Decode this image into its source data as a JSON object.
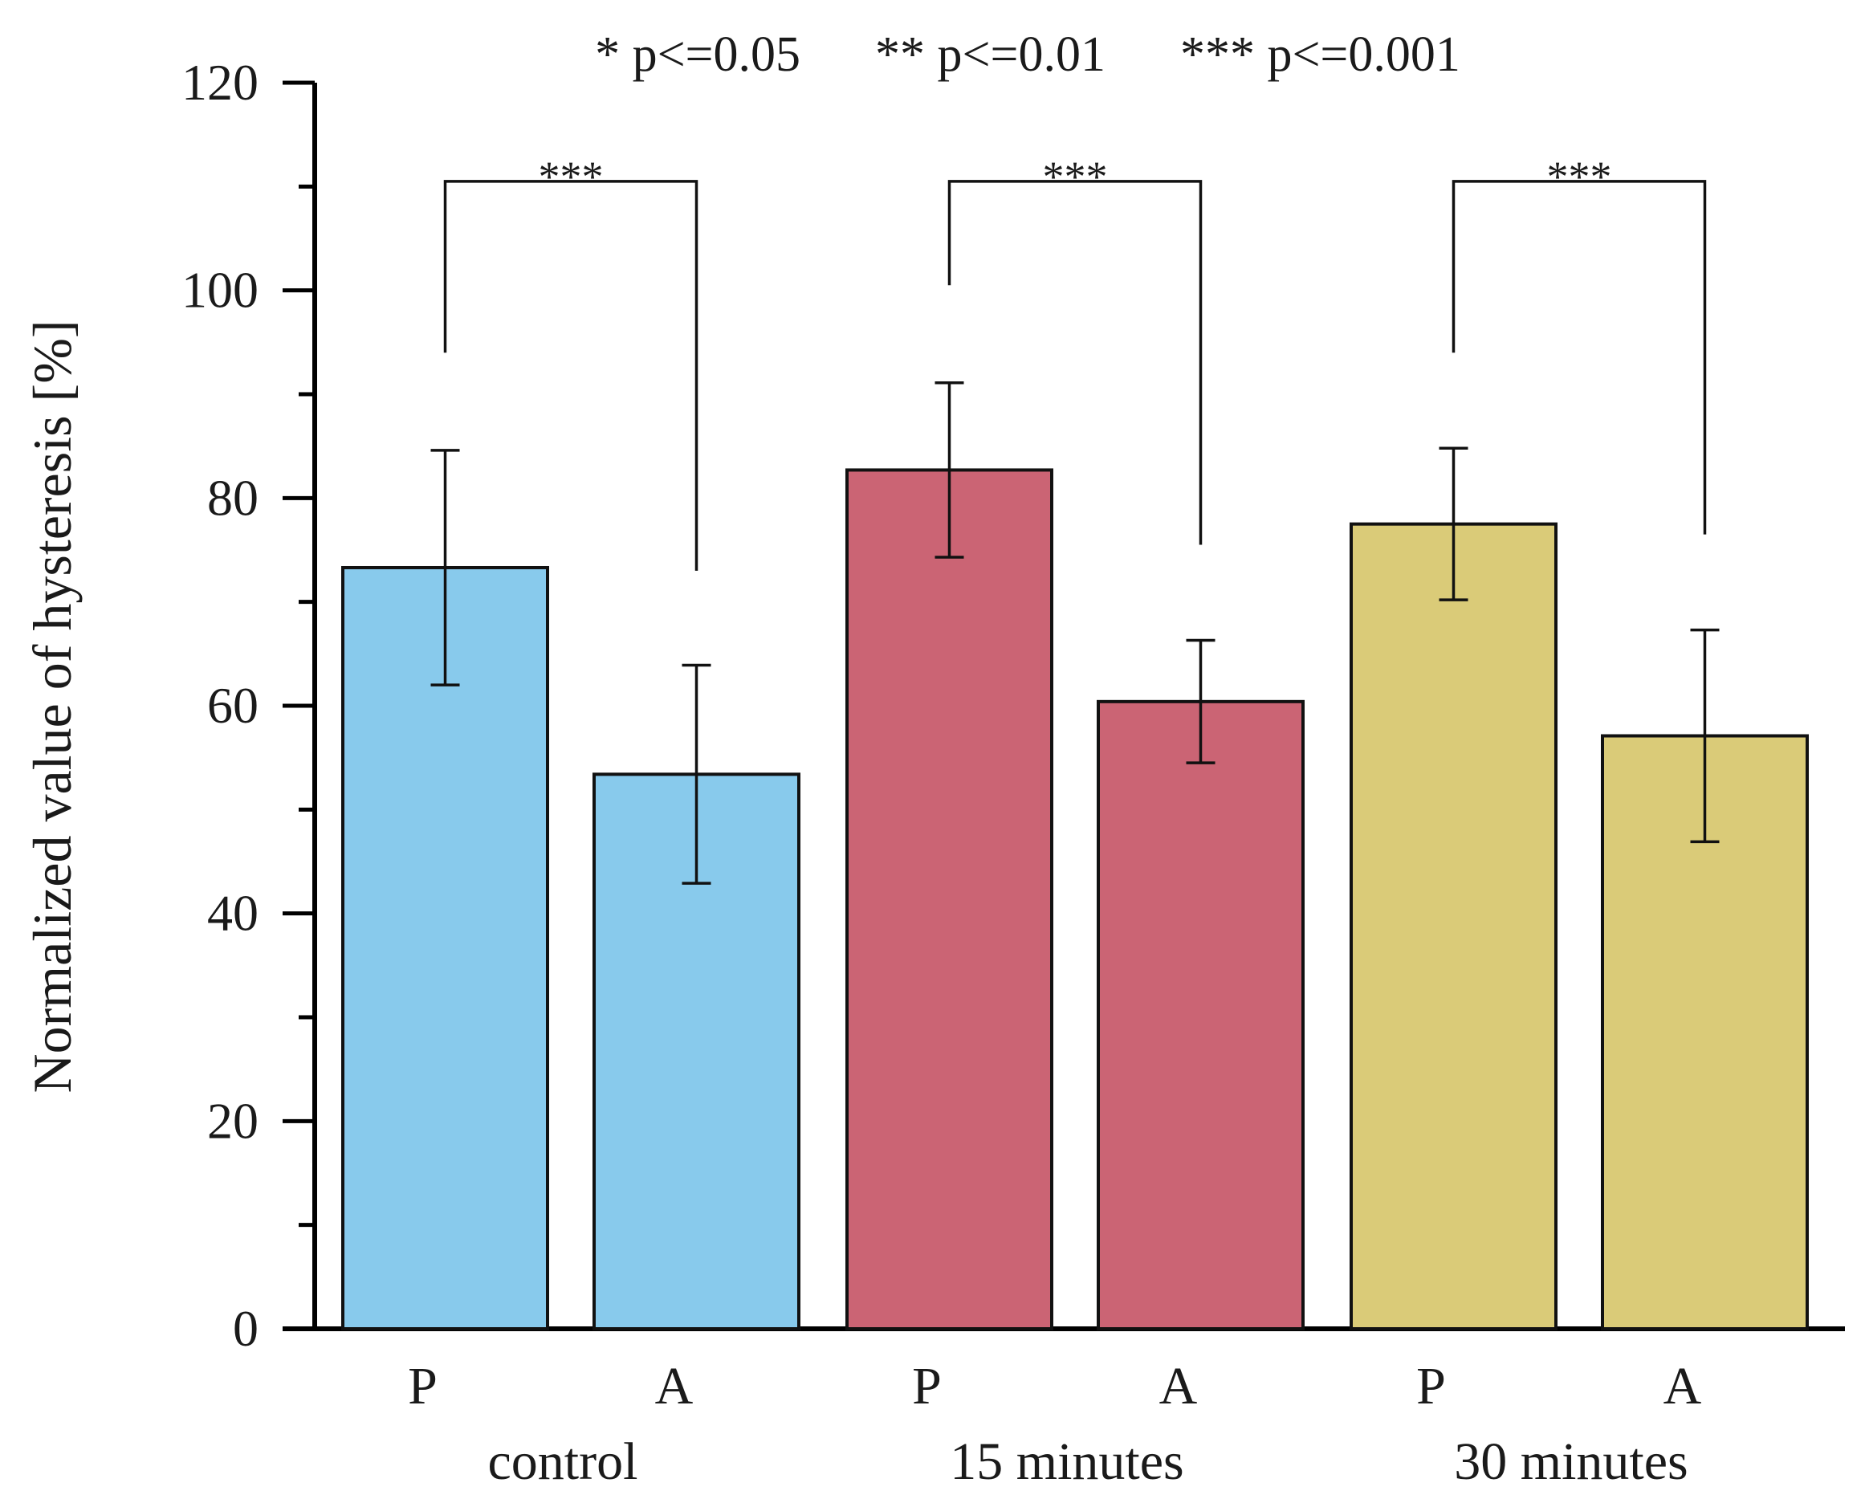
{
  "chart_data": {
    "type": "bar",
    "title": "",
    "significance_legend": [
      {
        "symbol": "*",
        "text": "p<=0.05"
      },
      {
        "symbol": "**",
        "text": "p<=0.01"
      },
      {
        "symbol": "***",
        "text": "p<=0.001"
      }
    ],
    "ylabel": "Normalized value of hysteresis [%]",
    "xlabel": "",
    "ylim": [
      0,
      120
    ],
    "yticks": [
      0,
      20,
      40,
      60,
      80,
      100,
      120
    ],
    "grid": false,
    "groups": [
      {
        "name": "control",
        "color": "#88CAEC",
        "bars": [
          {
            "label": "P",
            "value": 73.3,
            "error": 11.3
          },
          {
            "label": "A",
            "value": 53.4,
            "error": 10.5
          }
        ],
        "significance": {
          "label": "***",
          "left_top": 94,
          "right_top": 73
        }
      },
      {
        "name": "15 minutes",
        "color": "#CB6474",
        "bars": [
          {
            "label": "P",
            "value": 82.7,
            "error": 8.4
          },
          {
            "label": "A",
            "value": 60.4,
            "error": 5.9
          }
        ],
        "significance": {
          "label": "***",
          "left_top": 100.5,
          "right_top": 75.5
        }
      },
      {
        "name": "30 minutes",
        "color": "#DACB78",
        "bars": [
          {
            "label": "P",
            "value": 77.5,
            "error": 7.3
          },
          {
            "label": "A",
            "value": 57.1,
            "error": 10.2
          }
        ],
        "significance": {
          "label": "***",
          "left_top": 94,
          "right_top": 76.5
        }
      }
    ],
    "bracket_level": 110.5
  }
}
